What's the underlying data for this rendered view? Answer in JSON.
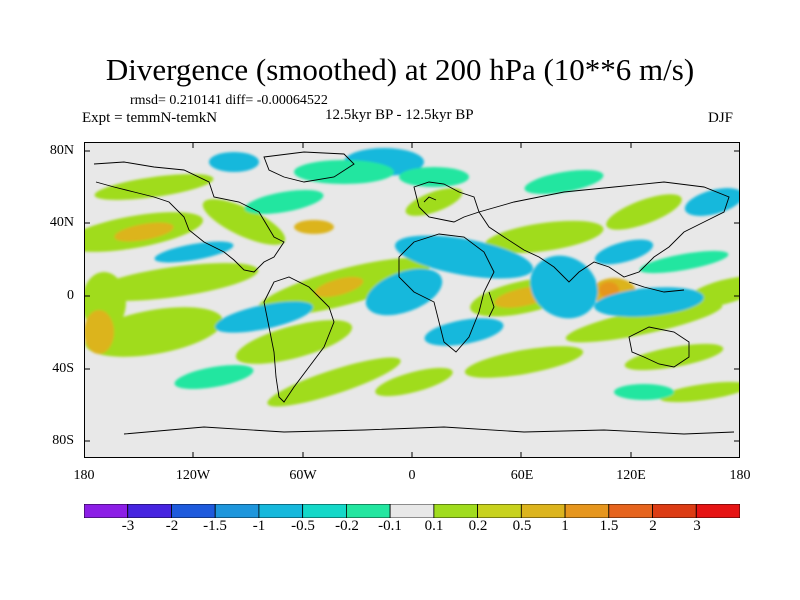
{
  "title": "Divergence (smoothed) at 200 hPa (10**6 m/s)",
  "stats": "rmsd= 0.210141  diff= -0.00064522",
  "experiment": "Expt = temmN-temkN",
  "period": "12.5kyr BP - 12.5kyr BP",
  "season": "DJF",
  "y_axis": {
    "labels": [
      "80N",
      "40N",
      "0",
      "40S",
      "80S"
    ]
  },
  "x_axis": {
    "labels": [
      "180",
      "120W",
      "60W",
      "0",
      "60E",
      "120E",
      "180"
    ]
  },
  "colorbar": {
    "colors": [
      "#8c1ee6",
      "#4624e0",
      "#1e5adc",
      "#1e96dc",
      "#16b8dc",
      "#14d8c8",
      "#23e6a0",
      "#e8e8e8",
      "#a0dc1e",
      "#c8d21e",
      "#dcb41e",
      "#e6961e",
      "#e6641e",
      "#dc3c14",
      "#e61414"
    ],
    "labels": [
      "-3",
      "-2",
      "-1.5",
      "-1",
      "-0.5",
      "-0.2",
      "-0.1",
      "0.1",
      "0.2",
      "0.5",
      "1",
      "1.5",
      "2",
      "3"
    ]
  },
  "chart_data": {
    "type": "filled-contour map",
    "title": "Divergence (smoothed) at 200 hPa (10**6 m/s)",
    "variable": "200 hPa divergence (smoothed)",
    "units": "10**6 m/s",
    "season": "DJF",
    "rmsd": 0.210141,
    "diff": -0.00064522,
    "lon_range": [
      -180,
      180
    ],
    "lat_range": [
      -90,
      90
    ],
    "contour_levels": [
      -3,
      -2,
      -1.5,
      -1,
      -0.5,
      -0.2,
      -0.1,
      0.1,
      0.2,
      0.5,
      1,
      1.5,
      2,
      3
    ]
  }
}
